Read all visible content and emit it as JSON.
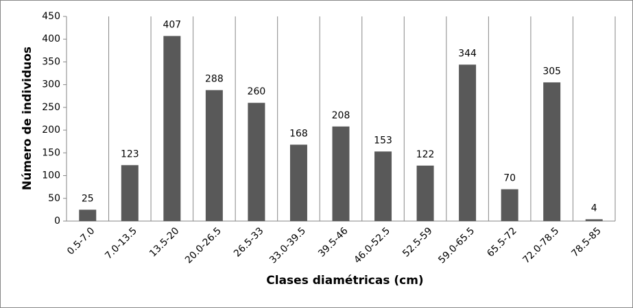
{
  "chart_data": {
    "type": "bar",
    "x_label": "Clases diamétricas (cm)",
    "y_label": "Número de individuos",
    "categories": [
      "0.5-7.0",
      "7.0-13.5",
      "13.5-20",
      "20.0-26.5",
      "26.5-33",
      "33.0-39.5",
      "39.5-46",
      "46.0-52.5",
      "52.5-59",
      "59.0-65.5",
      "65.5-72",
      "72.0-78.5",
      "78.5-85"
    ],
    "values": [
      25,
      123,
      407,
      288,
      260,
      168,
      208,
      153,
      122,
      344,
      70,
      305,
      4
    ],
    "color": "#595959",
    "ylim": [
      0,
      450
    ],
    "yticks": [
      0,
      50,
      100,
      150,
      200,
      250,
      300,
      350,
      400,
      450
    ],
    "grid": true
  }
}
